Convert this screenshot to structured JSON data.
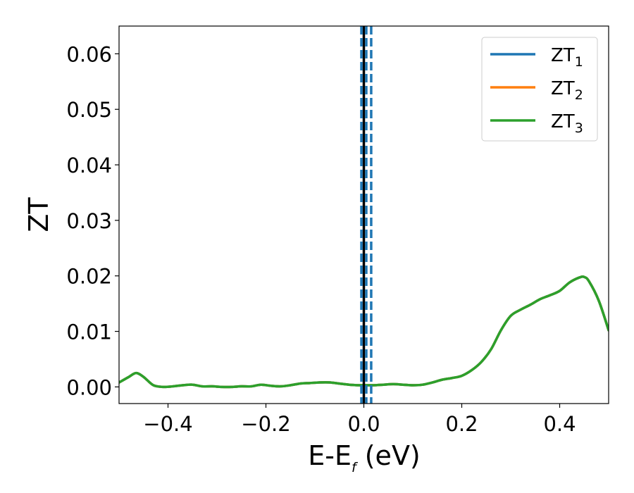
{
  "chart_data": {
    "type": "line",
    "xlabel_main": "E-E",
    "xlabel_sub": "f",
    "xlabel_unit": " (eV)",
    "ylabel": "ZT",
    "xlim": [
      -0.5,
      0.5
    ],
    "ylim": [
      -0.003,
      0.065
    ],
    "grid": false,
    "legend_position": "top-right",
    "x_ticks": [
      -0.4,
      -0.2,
      0.0,
      0.2,
      0.4
    ],
    "x_tick_labels": [
      "−0.4",
      "−0.2",
      "0.0",
      "0.2",
      "0.4"
    ],
    "y_ticks": [
      0.0,
      0.01,
      0.02,
      0.03,
      0.04,
      0.05,
      0.06
    ],
    "y_tick_labels": [
      "0.00",
      "0.01",
      "0.02",
      "0.03",
      "0.04",
      "0.05",
      "0.06"
    ],
    "vertical_lines": [
      {
        "x": 0.0,
        "style": "solid",
        "color": "#000000"
      },
      {
        "x": -0.005,
        "style": "dashed",
        "color": "#1f77b4"
      },
      {
        "x": 0.005,
        "style": "dashed",
        "color": "#1f77b4"
      },
      {
        "x": 0.015,
        "style": "dashed",
        "color": "#1f77b4"
      }
    ],
    "x": [
      -0.5,
      -0.48,
      -0.465,
      -0.45,
      -0.43,
      -0.41,
      -0.39,
      -0.37,
      -0.35,
      -0.33,
      -0.31,
      -0.29,
      -0.27,
      -0.25,
      -0.23,
      -0.21,
      -0.19,
      -0.17,
      -0.15,
      -0.13,
      -0.11,
      -0.09,
      -0.07,
      -0.05,
      -0.03,
      -0.01,
      0.0,
      0.02,
      0.04,
      0.06,
      0.08,
      0.1,
      0.12,
      0.14,
      0.16,
      0.18,
      0.2,
      0.22,
      0.24,
      0.26,
      0.28,
      0.3,
      0.32,
      0.34,
      0.36,
      0.38,
      0.4,
      0.42,
      0.44,
      0.45,
      0.46,
      0.48,
      0.5
    ],
    "series": [
      {
        "name": "ZT_1",
        "legend_main": "ZT",
        "legend_sub": "1",
        "color": "#1f77b4",
        "values": [
          0.0008,
          0.0018,
          0.0025,
          0.0018,
          0.0003,
          0.0,
          0.0001,
          0.0003,
          0.0004,
          0.0001,
          0.0001,
          0.0,
          0.0,
          0.0001,
          0.0001,
          0.0004,
          0.0002,
          0.0001,
          0.0003,
          0.0006,
          0.0007,
          0.0008,
          0.0008,
          0.0006,
          0.0004,
          0.0003,
          0.0003,
          0.0003,
          0.0004,
          0.0005,
          0.0004,
          0.0003,
          0.0004,
          0.0008,
          0.0013,
          0.0016,
          0.002,
          0.003,
          0.0045,
          0.0068,
          0.0102,
          0.0128,
          0.0139,
          0.0148,
          0.0158,
          0.0165,
          0.0173,
          0.0188,
          0.0197,
          0.0198,
          0.019,
          0.0155,
          0.0102
        ]
      },
      {
        "name": "ZT_2",
        "legend_main": "ZT",
        "legend_sub": "2",
        "color": "#ff7f0e",
        "values": [
          0.0008,
          0.0018,
          0.0025,
          0.0018,
          0.0003,
          0.0,
          0.0001,
          0.0003,
          0.0004,
          0.0001,
          0.0001,
          0.0,
          0.0,
          0.0001,
          0.0001,
          0.0004,
          0.0002,
          0.0001,
          0.0003,
          0.0006,
          0.0007,
          0.0008,
          0.0008,
          0.0006,
          0.0004,
          0.0003,
          0.0003,
          0.0003,
          0.0004,
          0.0005,
          0.0004,
          0.0003,
          0.0004,
          0.0008,
          0.0013,
          0.0016,
          0.002,
          0.003,
          0.0045,
          0.0068,
          0.0102,
          0.0128,
          0.0139,
          0.0148,
          0.0158,
          0.0165,
          0.0173,
          0.0188,
          0.0197,
          0.0198,
          0.019,
          0.0155,
          0.0102
        ]
      },
      {
        "name": "ZT_3",
        "legend_main": "ZT",
        "legend_sub": "3",
        "color": "#2ca02c",
        "values": [
          0.0008,
          0.0018,
          0.0025,
          0.0018,
          0.0003,
          0.0,
          0.0001,
          0.0003,
          0.0004,
          0.0001,
          0.0001,
          0.0,
          0.0,
          0.0001,
          0.0001,
          0.0004,
          0.0002,
          0.0001,
          0.0003,
          0.0006,
          0.0007,
          0.0008,
          0.0008,
          0.0006,
          0.0004,
          0.0003,
          0.0003,
          0.0003,
          0.0004,
          0.0005,
          0.0004,
          0.0003,
          0.0004,
          0.0008,
          0.0013,
          0.0016,
          0.002,
          0.003,
          0.0045,
          0.0068,
          0.0102,
          0.0128,
          0.0139,
          0.0148,
          0.0158,
          0.0165,
          0.0173,
          0.0188,
          0.0197,
          0.0198,
          0.019,
          0.0155,
          0.0102
        ]
      }
    ]
  }
}
